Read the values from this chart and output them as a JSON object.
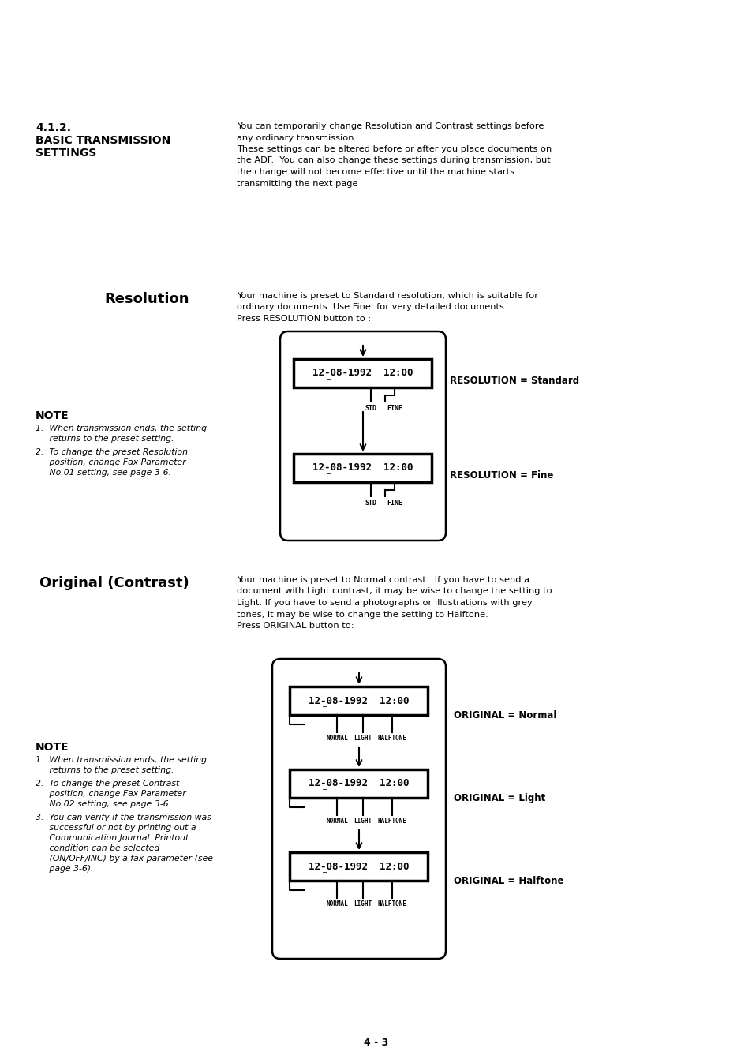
{
  "bg_color": "#ffffff",
  "page_number": "4 - 3",
  "section_num": "4.1.2.",
  "section_title": "BASIC TRANSMISSION\nSETTINGS",
  "section_body_line1": "You can temporarily change Resolution and Contrast settings before",
  "section_body_line2": "any ordinary transmission.",
  "section_body_line3": "These settings can be altered before or after you place documents on",
  "section_body_line4": "the ADF.  You can also change these settings during transmission, but",
  "section_body_line5": "the change will not become effective until the machine starts",
  "section_body_line6": "transmitting the next page",
  "resolution_label": "Resolution",
  "resolution_body_line1": "Your machine is preset to Standard resolution, which is suitable for",
  "resolution_body_line2": "ordinary documents. Use Fine  for very detailed documents.",
  "resolution_body_line3": "Press RESOLUTION button to :",
  "res_note_title": "NOTE",
  "res_note_1a": "1.  When transmission ends, the setting",
  "res_note_1b": "     returns to the preset setting.",
  "res_note_2a": "2.  To change the preset Resolution",
  "res_note_2b": "     position, change Fax Parameter",
  "res_note_2c": "     No.01 setting, see page 3-6.",
  "res_std_label": "RESOLUTION = Standard",
  "res_fine_label": "RESOLUTION = Fine",
  "contrast_label": "Original (Contrast)",
  "contrast_body_line1": "Your machine is preset to Normal contrast.  If you have to send a",
  "contrast_body_line2": "document with Light contrast, it may be wise to change the setting to",
  "contrast_body_line3": "Light. If you have to send a photographs or illustrations with grey",
  "contrast_body_line4": "tones, it may be wise to change the setting to Halftone.",
  "contrast_body_line5": "Press ORIGINAL button to:",
  "orig_normal_label": "ORIGINAL = Normal",
  "orig_light_label": "ORIGINAL = Light",
  "orig_halftone_label": "ORIGINAL = Halftone",
  "cont_note_title": "NOTE",
  "cont_note_1a": "1.  When transmission ends, the setting",
  "cont_note_1b": "     returns to the preset setting.",
  "cont_note_2a": "2.  To change the preset Contrast",
  "cont_note_2b": "     position, change Fax Parameter",
  "cont_note_2c": "     No.02 setting, see page 3-6.",
  "cont_note_3a": "3.  You can verify if the transmission was",
  "cont_note_3b": "     successful or not by printing out a",
  "cont_note_3c": "     Communication Journal. Printout",
  "cont_note_3d": "     condition can be selected",
  "cont_note_3e": "     (ON/OFF/INC) by a fax parameter (see",
  "cont_note_3f": "     page 3-6).",
  "display_text": "12-08-1992  12:00"
}
